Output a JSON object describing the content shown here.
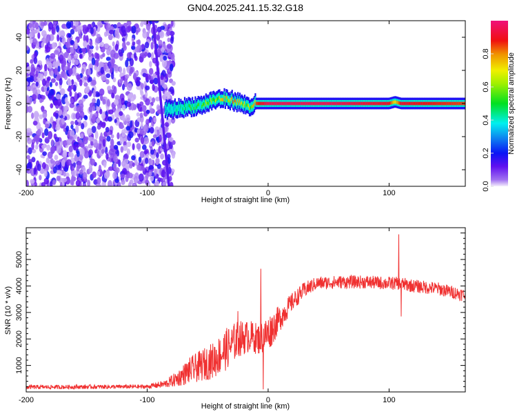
{
  "chart_data": [
    {
      "type": "heatmap",
      "title": "GN04.2025.241.15.32.G18",
      "xlabel": "Height of straight line (km)",
      "ylabel": "Frequency (Hz)",
      "xlim": [
        -200,
        163
      ],
      "ylim": [
        -50,
        50
      ],
      "xticks": [
        "-200",
        "-100",
        "0",
        "100"
      ],
      "xtick_values": [
        -200,
        -100,
        0,
        100
      ],
      "yticks": [
        "-40",
        "-20",
        "0",
        "20",
        "40"
      ],
      "ytick_values": [
        -40,
        -20,
        0,
        20,
        40
      ],
      "colorbar": {
        "label": "Normalized spectral amplitude",
        "ticks": [
          "0.0",
          "0.2",
          "0.4",
          "0.6",
          "0.8"
        ],
        "tick_values": [
          0,
          0.2,
          0.4,
          0.6,
          0.8
        ],
        "range": [
          0,
          1
        ]
      },
      "noise_region_km": [
        -200,
        -88
      ],
      "diagonal_line": {
        "start": [
          -95,
          50
        ],
        "end": [
          -82,
          -50
        ]
      },
      "track": {
        "x": [
          -85,
          -75,
          -65,
          -55,
          -45,
          -38,
          -30,
          -22,
          -15,
          -10,
          0,
          50,
          100,
          105,
          110,
          163
        ],
        "freq_hz": [
          -4,
          -3,
          -2,
          -1,
          2,
          3,
          2,
          0,
          -2,
          0,
          0,
          0,
          0,
          1,
          0,
          0
        ],
        "amplitude": [
          0.35,
          0.45,
          0.5,
          0.55,
          0.6,
          0.75,
          0.8,
          0.7,
          0.65,
          0.85,
          0.95,
          0.95,
          0.9,
          0.7,
          0.9,
          0.85
        ]
      }
    },
    {
      "type": "line",
      "xlabel": "Height of straight line (km)",
      "ylabel": "SNR (10 * v/v)",
      "xlim": [
        -200,
        163
      ],
      "ylim": [
        0,
        6200
      ],
      "xticks": [
        "-200",
        "-100",
        "0",
        "100"
      ],
      "xtick_values": [
        -200,
        -100,
        0,
        100
      ],
      "yticks": [
        "1000",
        "2000",
        "3000",
        "4000",
        "5000"
      ],
      "ytick_values": [
        1000,
        2000,
        3000,
        4000,
        5000
      ],
      "series": [
        {
          "name": "SNR",
          "color": "#f03030",
          "x": [
            -200,
            -100,
            -85,
            -75,
            -65,
            -55,
            -45,
            -35,
            -25,
            -15,
            -8,
            0,
            10,
            20,
            30,
            40,
            60,
            80,
            100,
            108,
            120,
            140,
            163
          ],
          "trend": [
            180,
            200,
            300,
            500,
            800,
            1000,
            1200,
            1600,
            2000,
            2100,
            2000,
            2200,
            2800,
            3400,
            3850,
            4100,
            4150,
            4150,
            4100,
            4100,
            4000,
            3900,
            3650
          ],
          "noise": [
            80,
            80,
            150,
            300,
            500,
            600,
            700,
            800,
            700,
            600,
            600,
            700,
            500,
            350,
            300,
            250,
            250,
            250,
            250,
            250,
            250,
            250,
            250
          ],
          "spikes": [
            [
              -6,
              4650
            ],
            [
              -4,
              100
            ],
            [
              108,
              5950
            ],
            [
              110,
              2850
            ],
            [
              -25,
              3050
            ]
          ]
        }
      ]
    }
  ]
}
